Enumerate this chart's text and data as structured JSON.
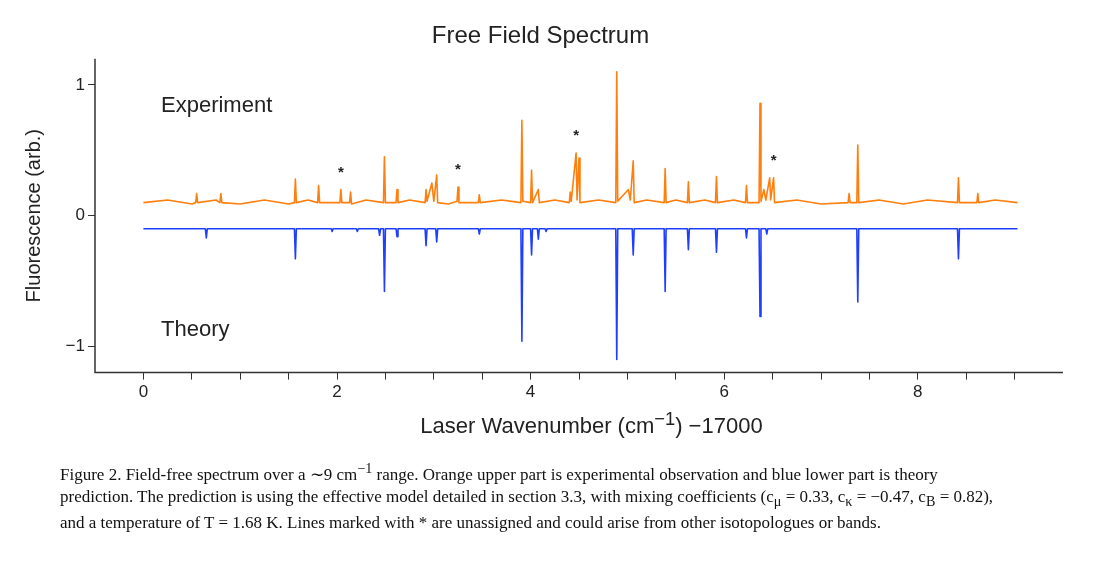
{
  "chart_data": {
    "type": "line",
    "title": "Free Field Spectrum",
    "xlabel": "Laser Wavenumber (cm$^{−1}$) −17000",
    "ylabel": "Fluorescence (arb.)",
    "xlim": [
      -0.5,
      9.5
    ],
    "ylim": [
      -1.2,
      1.2
    ],
    "xticks": [
      0,
      {
        "value": 0.5,
        "label": null
      },
      {
        "value": 1,
        "label": null
      },
      {
        "value": 1.5,
        "label": null
      },
      2,
      {
        "value": 2.5,
        "label": null
      },
      {
        "value": 3,
        "label": null
      },
      {
        "value": 3.5,
        "label": null
      },
      4,
      {
        "value": 4.5,
        "label": null
      },
      {
        "value": 5,
        "label": null
      },
      {
        "value": 5.5,
        "label": null
      },
      6,
      {
        "value": 6.5,
        "label": null
      },
      {
        "value": 7,
        "label": null
      },
      {
        "value": 7.5,
        "label": null
      },
      8,
      {
        "value": 8.5,
        "label": null
      },
      {
        "value": 9,
        "label": null
      }
    ],
    "yticks": [
      -1,
      0,
      1
    ],
    "grid": false,
    "legend": false,
    "marker": "none",
    "line_style": "solid",
    "series": [
      {
        "color": "#ff7f0e",
        "x": [
          0,
          0.25,
          0.5,
          0.54,
          0.55,
          0.56,
          0.75,
          0.79,
          0.8,
          0.81,
          1.0,
          1.25,
          1.5,
          1.56,
          1.57,
          1.58,
          1.7,
          1.8,
          1.81,
          1.82,
          2.03,
          2.04,
          2.05,
          2.13,
          2.14,
          2.15,
          2.3,
          2.48,
          2.49,
          2.5,
          2.61,
          2.62,
          2.63,
          2.75,
          2.91,
          2.92,
          2.93,
          2.98,
          3.0,
          3.03,
          3.04,
          3.15,
          3.24,
          3.25,
          3.26,
          3.46,
          3.47,
          3.48,
          3.7,
          3.9,
          3.91,
          3.92,
          4.0,
          4.01,
          4.02,
          4.08,
          4.09,
          4.25,
          4.4,
          4.41,
          4.42,
          4.47,
          4.48,
          4.5,
          4.51,
          4.7,
          4.88,
          4.89,
          4.9,
          5.01,
          5.03,
          5.06,
          5.07,
          5.2,
          5.38,
          5.39,
          5.4,
          5.5,
          5.62,
          5.63,
          5.64,
          5.8,
          5.91,
          5.92,
          5.93,
          6.1,
          6.22,
          6.23,
          6.24,
          6.36,
          6.37,
          6.38,
          6.41,
          6.43,
          6.47,
          6.48,
          6.51,
          6.52,
          6.75,
          7.0,
          7.28,
          7.29,
          7.3,
          7.37,
          7.38,
          7.39,
          7.6,
          7.85,
          8.1,
          8.41,
          8.42,
          8.43,
          8.61,
          8.62,
          8.63,
          8.8,
          9.03
        ],
        "values": [
          0.1,
          0.12,
          0.09,
          0.1,
          0.17,
          0.1,
          0.12,
          0.1,
          0.17,
          0.1,
          0.09,
          0.12,
          0.09,
          0.1,
          0.28,
          0.1,
          0.12,
          0.1,
          0.23,
          0.1,
          0.1,
          0.2,
          0.1,
          0.1,
          0.18,
          0.09,
          0.12,
          0.1,
          0.45,
          0.1,
          0.1,
          0.2,
          0.1,
          0.12,
          0.1,
          0.2,
          0.11,
          0.25,
          0.11,
          0.31,
          0.1,
          0.09,
          0.11,
          0.22,
          0.1,
          0.1,
          0.16,
          0.1,
          0.12,
          0.1,
          0.73,
          0.11,
          0.1,
          0.35,
          0.1,
          0.2,
          0.1,
          0.12,
          0.1,
          0.18,
          0.11,
          0.48,
          0.12,
          0.44,
          0.1,
          0.12,
          0.1,
          1.1,
          0.11,
          0.2,
          0.12,
          0.42,
          0.1,
          0.12,
          0.1,
          0.36,
          0.1,
          0.12,
          0.1,
          0.26,
          0.1,
          0.12,
          0.1,
          0.3,
          0.1,
          0.12,
          0.1,
          0.23,
          0.1,
          0.1,
          0.86,
          0.11,
          0.2,
          0.12,
          0.29,
          0.12,
          0.29,
          0.1,
          0.12,
          0.09,
          0.1,
          0.17,
          0.1,
          0.1,
          0.54,
          0.1,
          0.12,
          0.09,
          0.12,
          0.1,
          0.29,
          0.1,
          0.1,
          0.17,
          0.1,
          0.12,
          0.1
        ]
      },
      {
        "color": "#1f3fff",
        "x": [
          0,
          0.64,
          0.65,
          0.66,
          1.56,
          1.57,
          1.58,
          1.94,
          1.95,
          1.96,
          2.2,
          2.21,
          2.22,
          2.43,
          2.44,
          2.45,
          2.48,
          2.49,
          2.5,
          2.61,
          2.62,
          2.63,
          2.91,
          2.92,
          2.93,
          3.02,
          3.03,
          3.04,
          3.46,
          3.47,
          3.48,
          3.9,
          3.91,
          3.92,
          4.0,
          4.01,
          4.02,
          4.07,
          4.08,
          4.09,
          4.15,
          4.16,
          4.17,
          4.88,
          4.89,
          4.9,
          5.05,
          5.06,
          5.07,
          5.38,
          5.39,
          5.4,
          5.62,
          5.63,
          5.64,
          5.91,
          5.92,
          5.93,
          6.22,
          6.23,
          6.24,
          6.36,
          6.37,
          6.38,
          6.43,
          6.44,
          6.45,
          7.37,
          7.38,
          7.39,
          8.41,
          8.42,
          8.43,
          9.03
        ],
        "values": [
          -0.1,
          -0.1,
          -0.17,
          -0.1,
          -0.1,
          -0.33,
          -0.1,
          -0.1,
          -0.12,
          -0.1,
          -0.1,
          -0.12,
          -0.1,
          -0.1,
          -0.15,
          -0.1,
          -0.1,
          -0.58,
          -0.1,
          -0.1,
          -0.16,
          -0.1,
          -0.1,
          -0.23,
          -0.1,
          -0.1,
          -0.2,
          -0.1,
          -0.1,
          -0.14,
          -0.1,
          -0.1,
          -0.96,
          -0.1,
          -0.1,
          -0.3,
          -0.1,
          -0.1,
          -0.18,
          -0.1,
          -0.1,
          -0.12,
          -0.1,
          -0.1,
          -1.1,
          -0.1,
          -0.1,
          -0.3,
          -0.1,
          -0.1,
          -0.58,
          -0.1,
          -0.1,
          -0.26,
          -0.1,
          -0.1,
          -0.28,
          -0.1,
          -0.1,
          -0.17,
          -0.1,
          -0.1,
          -0.77,
          -0.1,
          -0.1,
          -0.14,
          -0.1,
          -0.1,
          -0.66,
          -0.1,
          -0.1,
          -0.33,
          -0.1,
          -0.1
        ]
      }
    ],
    "annotations": [
      "Experiment",
      "Theory",
      {
        "text": "*",
        "x": 2.04,
        "y": 0.2
      },
      {
        "text": "*",
        "x": 3.25,
        "y": 0.22
      },
      {
        "text": "*",
        "x": 4.47,
        "y": 0.48
      },
      {
        "text": "*",
        "x": 6.51,
        "y": 0.29
      },
      "Figure 2. Field-free spectrum over a ∼9 cm$^{−1}$ range. Orange upper part is experimental observation and blue lower part is theory prediction. The prediction is using the effective model detailed in section 3.3, with mixing coefficients (c$_{μ}$ = 0.33, c$_{κ}$ = −0.47, c$_{B}$ = 0.82), and a temperature of T = 1.68 K. Lines marked with * are unassigned and could arise from other isotopologues or bands."
    ]
  }
}
